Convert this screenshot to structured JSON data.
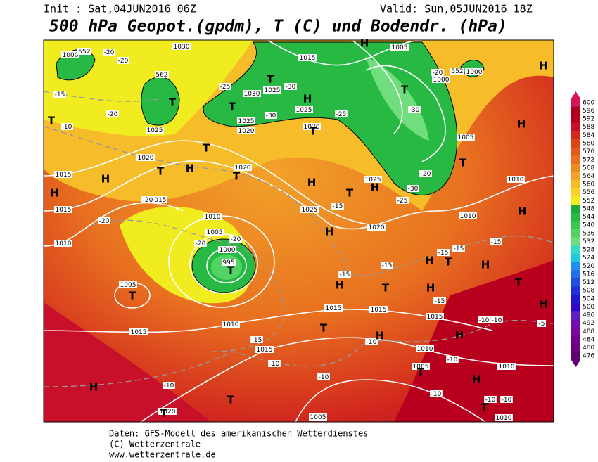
{
  "header": {
    "init": "Init : Sat,04JUN2016 06Z",
    "valid": "Valid: Sun,05JUN2016 18Z",
    "title": "500 hPa Geopot.(gpdm), T (C) und Bodendr. (hPa)"
  },
  "map": {
    "pressure_labels": [
      1000,
      552,
      1030,
      562,
      1015,
      1005,
      1000,
      552,
      1000,
      1030,
      1025,
      1025,
      1020,
      1025,
      1020,
      1025,
      1020,
      1020,
      1015,
      1015,
      1015,
      1025,
      1025,
      1020,
      1010,
      1005,
      1000,
      995,
      1010,
      1005,
      1010,
      1015,
      1015,
      1015,
      1015,
      1015,
      1010,
      1005,
      1010,
      1010,
      1010,
      1005,
      1020,
      1005,
      1010
    ],
    "isotherm_labels": [
      -20,
      -20,
      -15,
      -20,
      -10,
      -25,
      -30,
      -30,
      -25,
      -30,
      -20,
      -30,
      -25,
      -20,
      -15,
      -20,
      -20,
      -20,
      -20,
      -15,
      -15,
      -15,
      -15,
      -15,
      -15,
      -10,
      -10,
      -15,
      -10,
      -10,
      -10,
      -10,
      -10,
      -10,
      -10,
      -10,
      -5
    ],
    "centers": [
      "H",
      "H",
      "T",
      "T",
      "H",
      "T",
      "T",
      "T",
      "T",
      "T",
      "H",
      "T",
      "H",
      "T",
      "H",
      "H",
      "T",
      "H",
      "T",
      "H",
      "H",
      "T",
      "T",
      "H",
      "T",
      "H",
      "T",
      "H",
      "T",
      "H",
      "H",
      "T",
      "H",
      "H",
      "T",
      "H",
      "H",
      "T",
      "T",
      "T",
      "H"
    ]
  },
  "legend": {
    "levels": [
      600,
      596,
      592,
      588,
      584,
      580,
      576,
      572,
      568,
      564,
      560,
      556,
      552,
      548,
      544,
      540,
      536,
      532,
      528,
      524,
      520,
      516,
      512,
      508,
      504,
      500,
      496,
      492,
      488,
      484,
      480,
      476
    ],
    "colors": [
      "#d4145a",
      "#a8001e",
      "#b8001e",
      "#c8102a",
      "#d22a1e",
      "#dc4418",
      "#e25a18",
      "#e87020",
      "#ee8a22",
      "#f2a22a",
      "#f6bc2a",
      "#f8d428",
      "#f0ec20",
      "#1ea83c",
      "#28b844",
      "#38c850",
      "#50d464",
      "#70de7e",
      "#38d8c8",
      "#20c8e0",
      "#2090f0",
      "#2070e8",
      "#2050e0",
      "#2030d8",
      "#2018d0",
      "#3008c8",
      "#6020c0",
      "#7010b0",
      "#7808a0",
      "#700090",
      "#680080",
      "#600070"
    ]
  },
  "footer": {
    "lines": [
      "Daten: GFS-Modell des amerikanischen Wetterdienstes",
      "(C) Wetterzentrale",
      "www.wetterzentrale.de"
    ]
  }
}
